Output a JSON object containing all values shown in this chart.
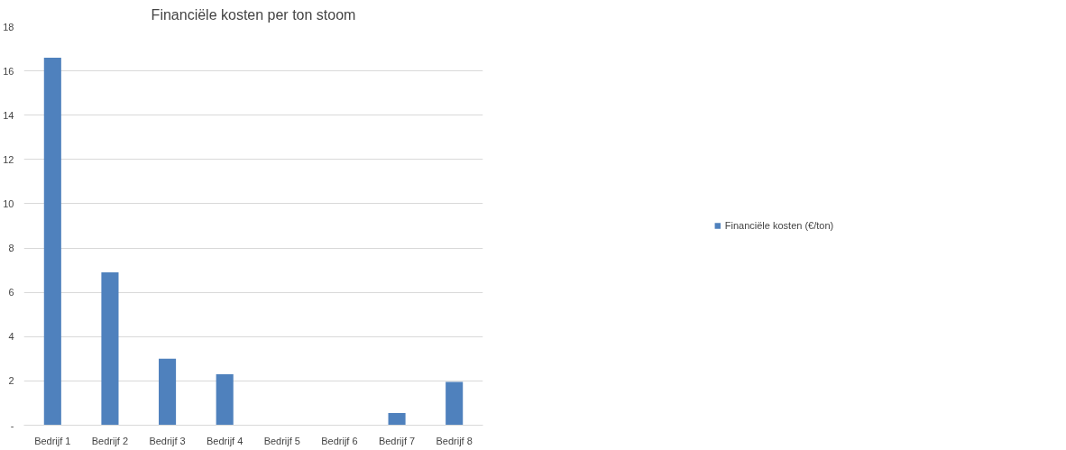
{
  "chart_data": {
    "type": "bar",
    "title": "Financiële kosten per ton stoom",
    "categories": [
      "Bedrijf 1",
      "Bedrijf 2",
      "Bedrijf 3",
      "Bedrijf 4",
      "Bedrijf 5",
      "Bedrijf 6",
      "Bedrijf 7",
      "Bedrijf 8"
    ],
    "series": [
      {
        "name": "Financiële kosten (€/ton)",
        "color": "#4f81bd",
        "values": [
          16.6,
          6.9,
          3.0,
          2.3,
          0,
          0,
          0.55,
          1.95
        ]
      }
    ],
    "ylim": [
      0,
      18
    ],
    "yticks": [
      {
        "value": 0,
        "label": "-"
      },
      2,
      4,
      6,
      8,
      10,
      12,
      14,
      16,
      18
    ],
    "grid": "y",
    "legend": "right"
  }
}
